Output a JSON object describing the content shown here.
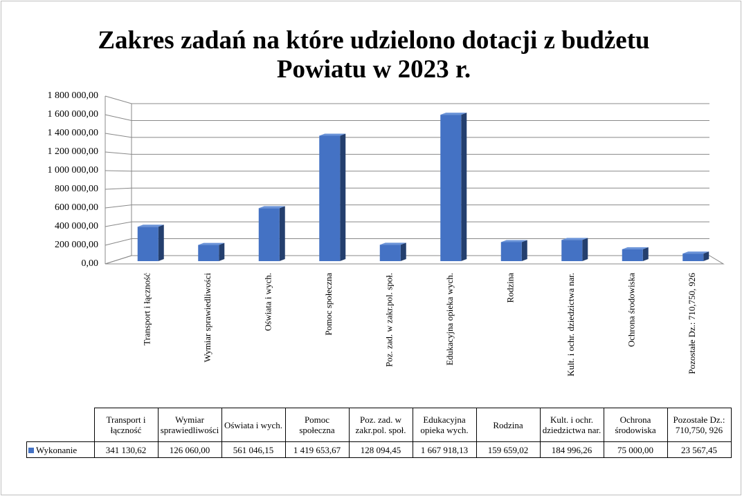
{
  "chart_data": {
    "type": "bar3d",
    "title": "Zakres zadań na które udzielono dotacji z budżetu Powiatu w 2023 r.",
    "categories": [
      "Transport i łączność",
      "Wymiar sprawiedliwości",
      "Oświata i wych.",
      "Pomoc społeczna",
      "Poz. zad. w zakr.pol. społ.",
      "Edukacyjna opieka wych.",
      "Rodzina",
      "Kult. i ochr. dziedzictwa nar.",
      "Ochrona środowiska",
      "Pozostałe Dz.: 710,750, 926"
    ],
    "series": [
      {
        "name": "Wykonanie",
        "color": "#4472c4",
        "values": [
          341130.62,
          126060.0,
          561046.15,
          1419653.67,
          128094.45,
          1667918.13,
          159659.02,
          184996.26,
          75000.0,
          23567.45
        ],
        "value_labels": [
          "341 130,62",
          "126 060,00",
          "561 046,15",
          "1 419 653,67",
          "128 094,45",
          "1 667 918,13",
          "159 659,02",
          "184 996,26",
          "75 000,00",
          "23 567,45"
        ]
      }
    ],
    "ylim": [
      0,
      1800000
    ],
    "yticks": [
      {
        "value": 0,
        "label": "0,00"
      },
      {
        "value": 200000,
        "label": "200 000,00"
      },
      {
        "value": 400000,
        "label": "400 000,00"
      },
      {
        "value": 600000,
        "label": "600 000,00"
      },
      {
        "value": 800000,
        "label": "800 000,00"
      },
      {
        "value": 1000000,
        "label": "1 000 000,00"
      },
      {
        "value": 1200000,
        "label": "1 200 000,00"
      },
      {
        "value": 1400000,
        "label": "1 400 000,00"
      },
      {
        "value": 1600000,
        "label": "1 600 000,00"
      },
      {
        "value": 1800000,
        "label": "1 800 000,00"
      }
    ],
    "grid": true
  }
}
